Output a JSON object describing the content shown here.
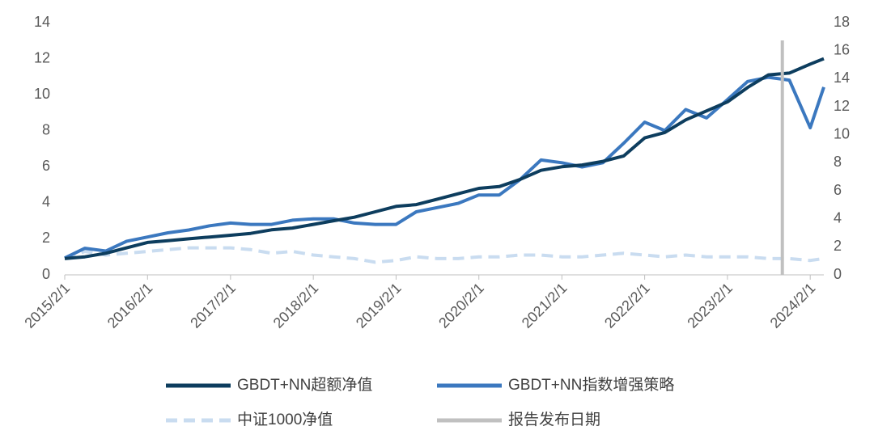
{
  "chart_data": {
    "type": "line",
    "x": [
      "2015/2/1",
      "2015/5/1",
      "2015/8/1",
      "2015/11/1",
      "2016/2/1",
      "2016/5/1",
      "2016/8/1",
      "2016/11/1",
      "2017/2/1",
      "2017/5/1",
      "2017/8/1",
      "2017/11/1",
      "2018/2/1",
      "2018/5/1",
      "2018/8/1",
      "2018/11/1",
      "2019/2/1",
      "2019/5/1",
      "2019/8/1",
      "2019/11/1",
      "2020/2/1",
      "2020/5/1",
      "2020/8/1",
      "2020/11/1",
      "2021/2/1",
      "2021/5/1",
      "2021/8/1",
      "2021/11/1",
      "2022/2/1",
      "2022/5/1",
      "2022/8/1",
      "2022/11/1",
      "2023/2/1",
      "2023/5/1",
      "2023/8/1",
      "2023/11/1",
      "2024/2/1",
      "2024/4/1"
    ],
    "xlim": [
      "2015/2/1",
      "2024/4/1"
    ],
    "xticks": [
      "2015/2/1",
      "2016/2/1",
      "2017/2/1",
      "2018/2/1",
      "2019/2/1",
      "2020/2/1",
      "2021/2/1",
      "2022/2/1",
      "2023/2/1",
      "2024/2/1"
    ],
    "ylim": [
      0,
      14
    ],
    "yticks": [
      0,
      2,
      4,
      6,
      8,
      10,
      12,
      14
    ],
    "y2lim": [
      0,
      18
    ],
    "y2ticks": [
      0,
      2,
      4,
      6,
      8,
      10,
      12,
      14,
      16,
      18
    ],
    "series": [
      {
        "name": "GBDT+NN超额净值",
        "color": "#0d3d5e",
        "axis": "y",
        "values": [
          0.9,
          1.0,
          1.2,
          1.5,
          1.8,
          1.9,
          2.0,
          2.1,
          2.2,
          2.3,
          2.5,
          2.6,
          2.8,
          3.0,
          3.2,
          3.5,
          3.8,
          3.9,
          4.2,
          4.5,
          4.8,
          4.9,
          5.3,
          5.8,
          6.0,
          6.1,
          6.3,
          6.6,
          7.6,
          7.9,
          8.6,
          9.1,
          9.6,
          10.4,
          11.1,
          11.2,
          11.7,
          12.0
        ]
      },
      {
        "name": "GBDT+NN指数增强策略",
        "color": "#3b78bf",
        "axis": "y2",
        "values": [
          1.2,
          1.9,
          1.7,
          2.4,
          2.7,
          3.0,
          3.2,
          3.5,
          3.7,
          3.6,
          3.6,
          3.9,
          4.0,
          4.0,
          3.7,
          3.6,
          3.6,
          4.5,
          4.8,
          5.1,
          5.7,
          5.7,
          6.8,
          8.2,
          8.0,
          7.7,
          8.0,
          9.4,
          10.9,
          10.3,
          11.8,
          11.2,
          12.5,
          13.8,
          14.1,
          13.9,
          10.5,
          13.4
        ]
      },
      {
        "name": "中证1000净值",
        "color": "#c9dcf0",
        "axis": "y",
        "dashed": true,
        "values": [
          0.9,
          1.3,
          1.1,
          1.2,
          1.3,
          1.4,
          1.5,
          1.5,
          1.5,
          1.4,
          1.2,
          1.3,
          1.1,
          1.0,
          0.9,
          0.7,
          0.8,
          1.0,
          0.9,
          0.9,
          1.0,
          1.0,
          1.1,
          1.1,
          1.0,
          1.0,
          1.1,
          1.2,
          1.1,
          1.0,
          1.1,
          1.0,
          1.0,
          1.0,
          0.9,
          0.9,
          0.8,
          0.9
        ]
      }
    ],
    "report_line": {
      "name": "报告发布日期",
      "x": "2023/10/1",
      "color": "#c0c0c0"
    }
  }
}
